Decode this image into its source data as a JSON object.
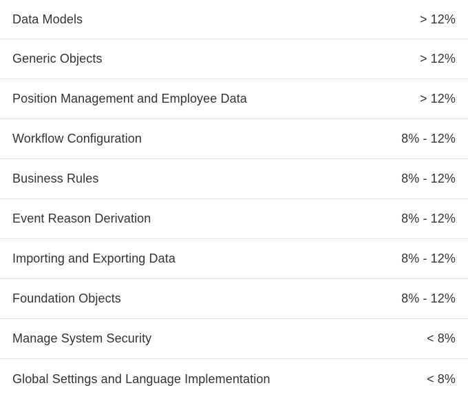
{
  "rows": [
    {
      "topic": "Data Models",
      "weight": "> 12%"
    },
    {
      "topic": "Generic Objects",
      "weight": "> 12%"
    },
    {
      "topic": "Position Management and Employee Data",
      "weight": "> 12%"
    },
    {
      "topic": "Workflow Configuration",
      "weight": "8% - 12%"
    },
    {
      "topic": "Business Rules",
      "weight": "8% - 12%"
    },
    {
      "topic": "Event Reason Derivation",
      "weight": "8% - 12%"
    },
    {
      "topic": "Importing and Exporting Data",
      "weight": "8% - 12%"
    },
    {
      "topic": "Foundation Objects",
      "weight": "8% - 12%"
    },
    {
      "topic": "Manage System Security",
      "weight": "< 8%"
    },
    {
      "topic": "Global Settings and Language Implementation",
      "weight": "< 8%"
    }
  ]
}
